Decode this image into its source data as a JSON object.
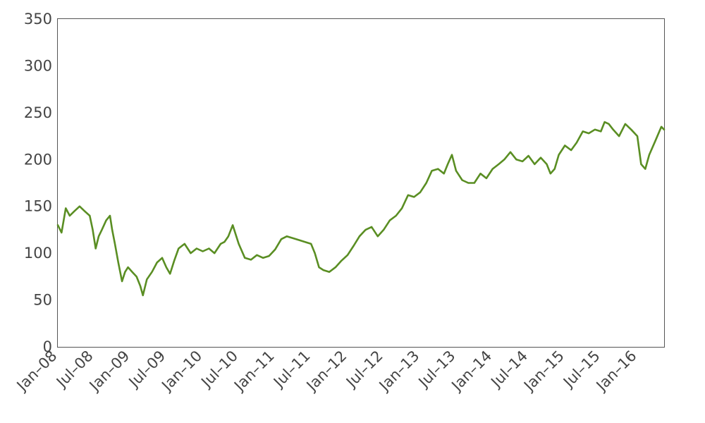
{
  "chart_data": {
    "type": "line",
    "title": "",
    "xlabel": "",
    "ylabel": "",
    "ylim": [
      0,
      350
    ],
    "xlim": [
      "2008-01-01",
      "2016-05-15"
    ],
    "y_ticks": [
      0,
      50,
      100,
      150,
      200,
      250,
      300,
      350
    ],
    "x_ticks": [
      {
        "date": "2008-01-01",
        "label": "Jan–08"
      },
      {
        "date": "2008-07-01",
        "label": "Jul–08"
      },
      {
        "date": "2009-01-01",
        "label": "Jan–09"
      },
      {
        "date": "2009-07-01",
        "label": "Jul–09"
      },
      {
        "date": "2010-01-01",
        "label": "Jan–10"
      },
      {
        "date": "2010-07-01",
        "label": "Jul–10"
      },
      {
        "date": "2011-01-01",
        "label": "Jan–11"
      },
      {
        "date": "2011-07-01",
        "label": "Jul–11"
      },
      {
        "date": "2012-01-01",
        "label": "Jan–12"
      },
      {
        "date": "2012-07-01",
        "label": "Jul–12"
      },
      {
        "date": "2013-01-01",
        "label": "Jan–13"
      },
      {
        "date": "2013-07-01",
        "label": "Jul–13"
      },
      {
        "date": "2014-01-01",
        "label": "Jan–14"
      },
      {
        "date": "2014-07-01",
        "label": "Jul–14"
      },
      {
        "date": "2015-01-01",
        "label": "Jan–15"
      },
      {
        "date": "2015-07-01",
        "label": "Jul–15"
      },
      {
        "date": "2016-01-01",
        "label": "Jan–16"
      }
    ],
    "grid": false,
    "series": [
      {
        "color": "#5a8e23",
        "x": [
          "2008-01-01",
          "2008-01-20",
          "2008-02-10",
          "2008-03-01",
          "2008-03-25",
          "2008-04-20",
          "2008-05-15",
          "2008-06-10",
          "2008-06-25",
          "2008-07-10",
          "2008-07-25",
          "2008-08-10",
          "2008-09-01",
          "2008-09-20",
          "2008-10-01",
          "2008-10-15",
          "2008-11-01",
          "2008-11-20",
          "2008-12-05",
          "2008-12-20",
          "2009-01-10",
          "2009-02-01",
          "2009-02-20",
          "2009-03-05",
          "2009-03-25",
          "2009-04-20",
          "2009-05-15",
          "2009-06-10",
          "2009-07-01",
          "2009-07-20",
          "2009-08-10",
          "2009-09-01",
          "2009-10-01",
          "2009-11-01",
          "2009-12-01",
          "2010-01-01",
          "2010-02-01",
          "2010-03-01",
          "2010-04-01",
          "2010-04-20",
          "2010-05-10",
          "2010-06-01",
          "2010-07-01",
          "2010-08-01",
          "2010-09-01",
          "2010-10-01",
          "2010-11-01",
          "2010-12-01",
          "2011-01-01",
          "2011-02-01",
          "2011-03-01",
          "2011-04-01",
          "2011-05-01",
          "2011-06-01",
          "2011-07-01",
          "2011-07-20",
          "2011-08-10",
          "2011-09-01",
          "2011-10-01",
          "2011-11-01",
          "2011-12-01",
          "2012-01-01",
          "2012-02-01",
          "2012-03-01",
          "2012-04-01",
          "2012-05-01",
          "2012-06-01",
          "2012-07-01",
          "2012-08-01",
          "2012-09-01",
          "2012-10-01",
          "2012-11-01",
          "2012-12-01",
          "2013-01-01",
          "2013-02-01",
          "2013-03-01",
          "2013-04-01",
          "2013-05-01",
          "2013-05-20",
          "2013-06-10",
          "2013-07-01",
          "2013-08-01",
          "2013-09-01",
          "2013-10-01",
          "2013-11-01",
          "2013-12-01",
          "2014-01-01",
          "2014-02-01",
          "2014-03-01",
          "2014-04-01",
          "2014-05-01",
          "2014-06-01",
          "2014-07-01",
          "2014-08-01",
          "2014-09-01",
          "2014-10-01",
          "2014-10-20",
          "2014-11-10",
          "2014-12-01",
          "2015-01-01",
          "2015-02-01",
          "2015-03-01",
          "2015-04-01",
          "2015-05-01",
          "2015-06-01",
          "2015-07-01",
          "2015-07-20",
          "2015-08-10",
          "2015-09-01",
          "2015-10-01",
          "2015-11-01",
          "2015-12-01",
          "2016-01-01",
          "2016-01-20",
          "2016-02-10",
          "2016-03-01",
          "2016-04-01",
          "2016-05-01",
          "2016-05-15"
        ],
        "y": [
          130,
          122,
          148,
          140,
          145,
          150,
          145,
          140,
          125,
          105,
          118,
          125,
          135,
          140,
          125,
          110,
          90,
          70,
          80,
          85,
          80,
          75,
          65,
          55,
          72,
          80,
          90,
          95,
          85,
          78,
          92,
          105,
          110,
          100,
          105,
          102,
          105,
          100,
          110,
          112,
          118,
          130,
          110,
          95,
          93,
          98,
          95,
          97,
          104,
          115,
          118,
          116,
          114,
          112,
          110,
          100,
          85,
          82,
          80,
          85,
          92,
          98,
          108,
          118,
          125,
          128,
          118,
          125,
          135,
          140,
          148,
          162,
          160,
          165,
          175,
          188,
          190,
          185,
          195,
          205,
          188,
          178,
          175,
          175,
          185,
          180,
          190,
          195,
          200,
          208,
          200,
          198,
          204,
          195,
          202,
          195,
          185,
          190,
          205,
          215,
          210,
          218,
          230,
          228,
          232,
          230,
          240,
          238,
          232,
          225,
          238,
          232,
          225,
          195,
          190,
          205,
          220,
          235,
          232
        ]
      }
    ]
  }
}
